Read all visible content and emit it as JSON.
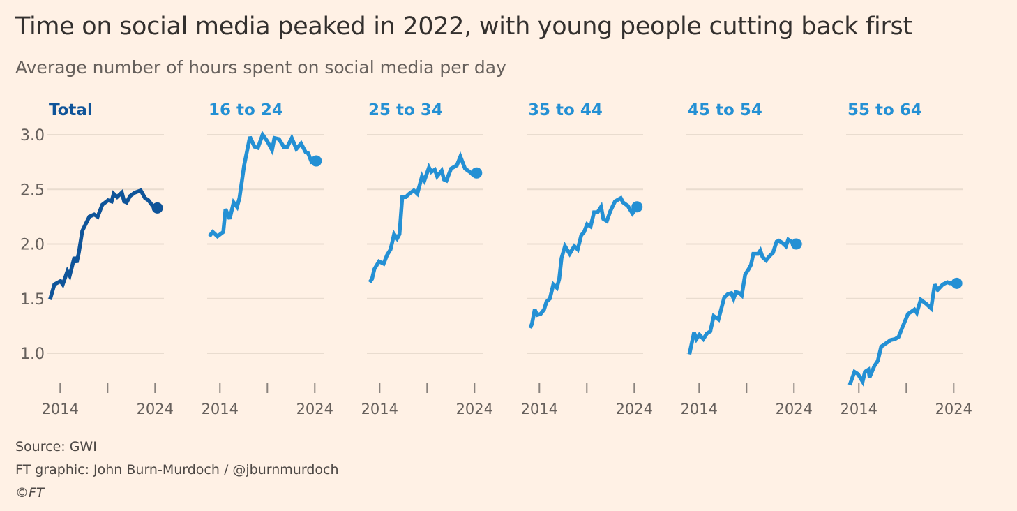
{
  "header": {
    "title": "Time on social media peaked in 2022, with young people cutting back first",
    "subtitle": "Average number of hours spent on social media per day"
  },
  "footer": {
    "source_prefix": "Source: ",
    "source_link": "GWI",
    "credit": "FT graphic: John Burn-Murdoch / @jburnmurdoch",
    "copyright": "©FT"
  },
  "colors": {
    "background": "#fff1e5",
    "total": "#0f5499",
    "age_group": "#2490d4",
    "grid": "#e9dccf",
    "text": "#66605c"
  },
  "chart_data": {
    "type": "line",
    "layout": "small multiples, one panel per series",
    "ylim": [
      0.7,
      3.0
    ],
    "yticks": [
      "1.0",
      "1.5",
      "2.0",
      "2.5",
      "3.0"
    ],
    "ytick_values": [
      1.0,
      1.5,
      2.0,
      2.5,
      3.0
    ],
    "xticks": [
      2014,
      2019,
      2024
    ],
    "xtick_labels": [
      "2014",
      "",
      "2024"
    ],
    "grid": true,
    "end_marker": "dot",
    "series": [
      {
        "name": "Total",
        "color": "#0f5499",
        "x": [
          2012.93,
          2013.39,
          2014.03,
          2014.27,
          2014.76,
          2015.0,
          2015.5,
          2015.74,
          2015.96,
          2016.33,
          2017.07,
          2017.58,
          2017.95,
          2018.44,
          2019.05,
          2019.42,
          2019.64,
          2020.0,
          2020.5,
          2020.74,
          2021.0,
          2021.38,
          2021.87,
          2022.49,
          2022.95,
          2023.3,
          2023.82,
          2024.24
        ],
        "y": [
          1.49,
          1.63,
          1.66,
          1.63,
          1.75,
          1.71,
          1.88,
          1.83,
          1.92,
          2.12,
          2.25,
          2.27,
          2.25,
          2.36,
          2.4,
          2.39,
          2.46,
          2.43,
          2.47,
          2.39,
          2.38,
          2.44,
          2.47,
          2.49,
          2.42,
          2.4,
          2.34,
          2.33
        ]
      },
      {
        "name": "16 to 24",
        "color": "#2490d4",
        "x": [
          2012.88,
          2013.24,
          2013.74,
          2014.35,
          2014.59,
          2015.03,
          2015.45,
          2015.8,
          2016.06,
          2016.55,
          2017.16,
          2017.65,
          2018.0,
          2018.5,
          2019.0,
          2019.49,
          2019.74,
          2020.23,
          2020.72,
          2021.1,
          2021.57,
          2022.06,
          2022.55,
          2023.04,
          2023.3,
          2023.66,
          2024.15
        ],
        "y": [
          2.07,
          2.11,
          2.07,
          2.11,
          2.32,
          2.23,
          2.38,
          2.34,
          2.42,
          2.72,
          2.98,
          2.89,
          2.88,
          3.0,
          2.94,
          2.86,
          2.97,
          2.96,
          2.89,
          2.89,
          2.97,
          2.87,
          2.92,
          2.84,
          2.83,
          2.75,
          2.76
        ]
      },
      {
        "name": "25 to 34",
        "color": "#2490d4",
        "x": [
          2012.95,
          2013.19,
          2013.44,
          2013.93,
          2014.42,
          2014.79,
          2015.15,
          2015.52,
          2015.84,
          2016.09,
          2016.38,
          2016.75,
          2017.12,
          2017.6,
          2017.97,
          2018.46,
          2018.71,
          2019.2,
          2019.44,
          2019.81,
          2020.06,
          2020.54,
          2020.79,
          2021.04,
          2021.53,
          2022.14,
          2022.51,
          2023.0,
          2023.49,
          2023.74,
          2024.22
        ],
        "y": [
          1.65,
          1.68,
          1.77,
          1.84,
          1.82,
          1.9,
          1.95,
          2.09,
          2.05,
          2.09,
          2.43,
          2.43,
          2.46,
          2.49,
          2.46,
          2.62,
          2.58,
          2.7,
          2.66,
          2.68,
          2.62,
          2.67,
          2.59,
          2.58,
          2.69,
          2.72,
          2.8,
          2.69,
          2.66,
          2.64,
          2.65
        ]
      },
      {
        "name": "35 to 44",
        "color": "#2490d4",
        "x": [
          2013.02,
          2013.22,
          2013.51,
          2013.76,
          2014.13,
          2014.49,
          2014.74,
          2015.1,
          2015.47,
          2015.84,
          2016.09,
          2016.33,
          2016.7,
          2017.19,
          2017.68,
          2018.04,
          2018.41,
          2018.71,
          2019.03,
          2019.4,
          2019.76,
          2020.13,
          2020.5,
          2020.74,
          2021.11,
          2021.47,
          2021.97,
          2022.58,
          2022.82,
          2023.31,
          2023.81,
          2024.29
        ],
        "y": [
          1.23,
          1.27,
          1.4,
          1.35,
          1.36,
          1.4,
          1.47,
          1.5,
          1.63,
          1.6,
          1.68,
          1.87,
          1.98,
          1.91,
          1.98,
          1.95,
          2.08,
          2.11,
          2.18,
          2.16,
          2.29,
          2.29,
          2.34,
          2.23,
          2.21,
          2.3,
          2.39,
          2.42,
          2.38,
          2.35,
          2.28,
          2.34
        ]
      },
      {
        "name": "45 to 54",
        "color": "#2490d4",
        "x": [
          2012.97,
          2013.46,
          2013.71,
          2014.03,
          2014.44,
          2014.81,
          2015.18,
          2015.54,
          2016.04,
          2016.65,
          2017.01,
          2017.38,
          2017.63,
          2017.88,
          2018.24,
          2018.49,
          2018.85,
          2019.22,
          2019.47,
          2019.71,
          2020.21,
          2020.45,
          2020.69,
          2021.06,
          2021.43,
          2021.79,
          2022.16,
          2022.41,
          2022.78,
          2023.15,
          2023.39,
          2023.76,
          2024.25
        ],
        "y": [
          0.99,
          1.19,
          1.13,
          1.17,
          1.13,
          1.18,
          1.2,
          1.34,
          1.31,
          1.51,
          1.54,
          1.55,
          1.5,
          1.56,
          1.55,
          1.53,
          1.72,
          1.77,
          1.81,
          1.91,
          1.91,
          1.94,
          1.88,
          1.85,
          1.89,
          1.92,
          2.02,
          2.03,
          2.01,
          1.98,
          2.04,
          2.02,
          2.0
        ]
      },
      {
        "name": "55 to 64",
        "color": "#2490d4",
        "x": [
          2013.04,
          2013.54,
          2013.9,
          2014.4,
          2014.64,
          2015.01,
          2015.13,
          2015.62,
          2015.99,
          2016.35,
          2016.85,
          2017.34,
          2017.82,
          2018.19,
          2018.56,
          2019.18,
          2019.54,
          2019.86,
          2020.1,
          2020.52,
          2021.13,
          2021.62,
          2021.99,
          2022.31,
          2022.85,
          2023.34,
          2023.59,
          2024.32
        ],
        "y": [
          0.71,
          0.83,
          0.81,
          0.74,
          0.83,
          0.85,
          0.78,
          0.88,
          0.93,
          1.06,
          1.09,
          1.12,
          1.13,
          1.15,
          1.23,
          1.36,
          1.38,
          1.4,
          1.37,
          1.49,
          1.45,
          1.41,
          1.63,
          1.58,
          1.63,
          1.65,
          1.64,
          1.64
        ]
      }
    ]
  }
}
